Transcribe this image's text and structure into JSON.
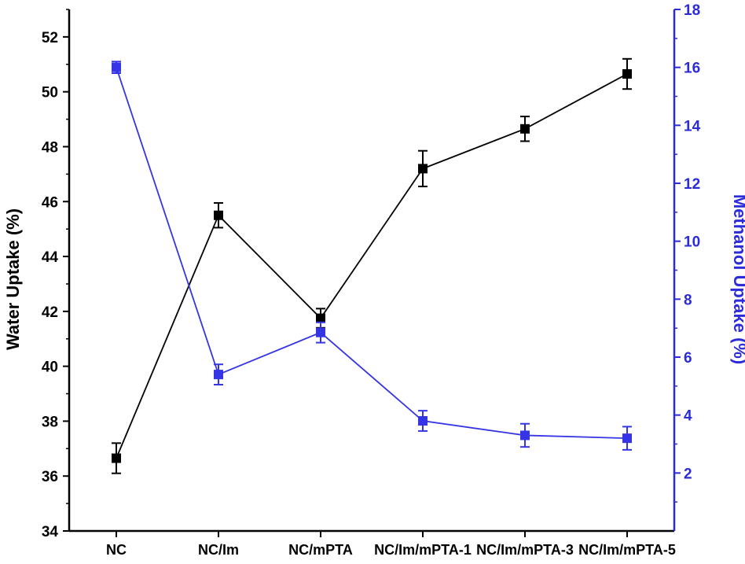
{
  "chart_data": {
    "type": "line",
    "categories": [
      "NC",
      "NC/Im",
      "NC/mPTA",
      "NC/Im/mPTA-1",
      "NC/Im/mPTA-3",
      "NC/Im/mPTA-5"
    ],
    "ylabel": "Water Uptake (%)",
    "y2label": "Methanol Uptake (%)",
    "ylim": [
      34,
      53
    ],
    "y2lim": [
      0,
      18
    ],
    "yticks": [
      34,
      36,
      38,
      40,
      42,
      44,
      46,
      48,
      50,
      52
    ],
    "y2ticks": [
      2,
      4,
      6,
      8,
      10,
      12,
      14,
      16,
      18
    ],
    "grid": false,
    "series": [
      {
        "axis": "left",
        "color": "#000000",
        "marker": "square",
        "values": [
          36.65,
          45.5,
          41.75,
          47.2,
          48.65,
          50.65
        ],
        "errors": [
          0.55,
          0.45,
          0.35,
          0.65,
          0.45,
          0.55
        ]
      },
      {
        "axis": "right",
        "color": "#3535e6",
        "marker": "square",
        "values": [
          16.0,
          5.4,
          6.85,
          3.8,
          3.3,
          3.2
        ],
        "errors": [
          0.2,
          0.35,
          0.35,
          0.35,
          0.4,
          0.4
        ]
      }
    ]
  }
}
